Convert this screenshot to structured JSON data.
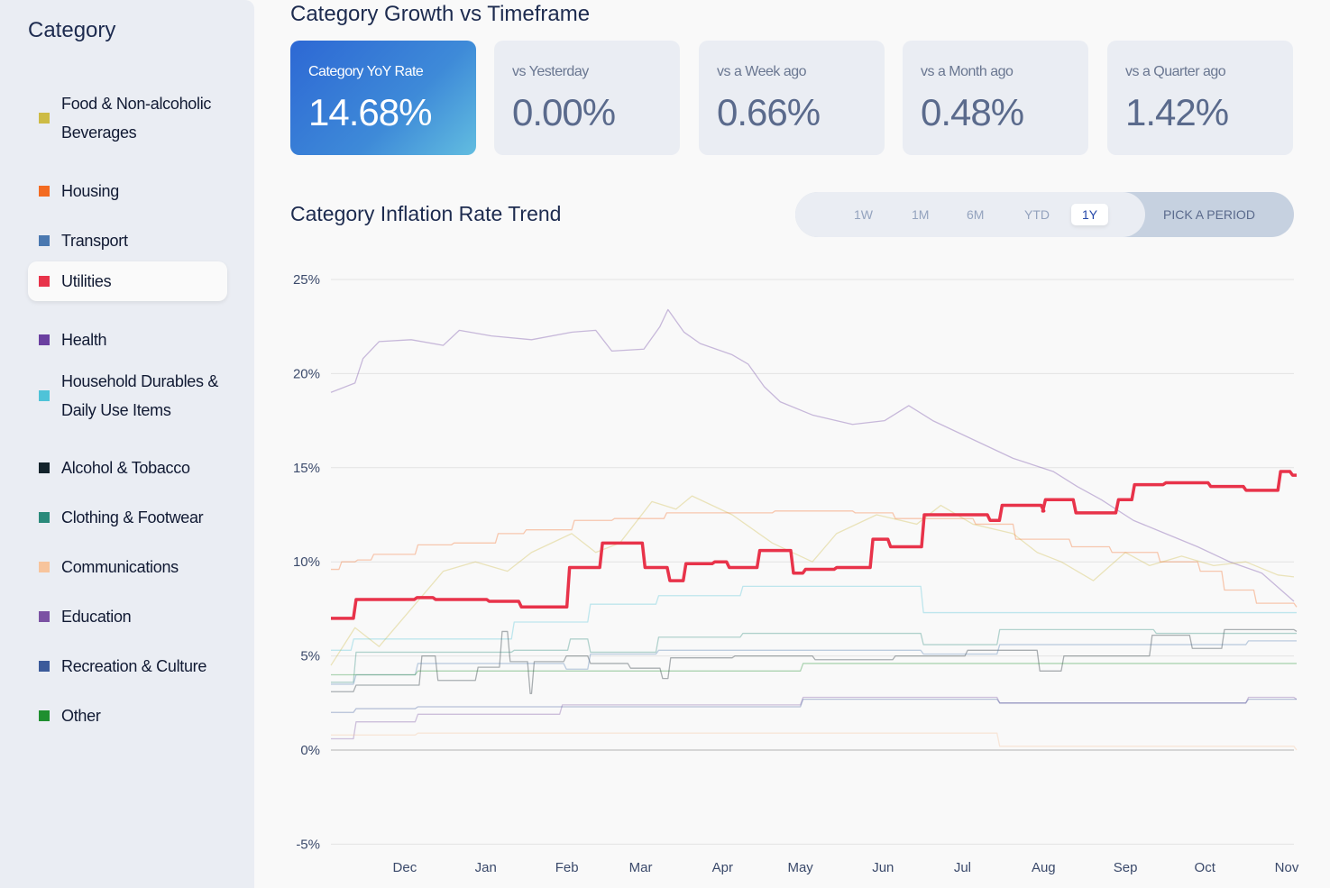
{
  "sidebar": {
    "title": "Category",
    "items": [
      {
        "label": "Food & Non-alcoholic Beverages",
        "color": "#cdbb45"
      },
      {
        "label": "Housing",
        "color": "#f36b21"
      },
      {
        "label": "Transport",
        "color": "#4a78b0"
      },
      {
        "label": "Utilities",
        "color": "#e8334a",
        "selected": true
      },
      {
        "label": "Health",
        "color": "#6a3fa0"
      },
      {
        "label": "Household Durables & Daily Use Items",
        "color": "#4fc3d8"
      },
      {
        "label": "Alcohol & Tobacco",
        "color": "#13232b"
      },
      {
        "label": "Clothing & Footwear",
        "color": "#2a8a7b"
      },
      {
        "label": "Communications",
        "color": "#f7c49c"
      },
      {
        "label": "Education",
        "color": "#7b52a3"
      },
      {
        "label": "Recreation & Culture",
        "color": "#3b5a9a"
      },
      {
        "label": "Other",
        "color": "#1f8f2f"
      }
    ]
  },
  "header": {
    "title": "Category Growth vs Timeframe"
  },
  "cards": [
    {
      "label": "Category YoY Rate",
      "value": "14.68%"
    },
    {
      "label": "vs Yesterday",
      "value": "0.00%"
    },
    {
      "label": "vs a Week ago",
      "value": "0.66%"
    },
    {
      "label": "vs a Month ago",
      "value": "0.48%"
    },
    {
      "label": "vs a Quarter ago",
      "value": "1.42%"
    }
  ],
  "trend": {
    "title": "Category Inflation Rate Trend",
    "periods": [
      "1W",
      "1M",
      "6M",
      "YTD",
      "1Y"
    ],
    "active_period": "1Y",
    "pick_label": "PICK A PERIOD"
  },
  "chart_data": {
    "type": "line",
    "title": "Category Inflation Rate Trend",
    "xlabel": "",
    "ylabel": "",
    "ylim": [
      -5,
      25
    ],
    "yticks": [
      "25%",
      "20%",
      "15%",
      "10%",
      "5%",
      "0%",
      "-5%"
    ],
    "ytick_values": [
      25,
      20,
      15,
      10,
      5,
      0,
      -5
    ],
    "xlim": [
      0,
      12
    ],
    "xticks": [
      "Dec",
      "Jan",
      "Feb",
      "Mar",
      "Apr",
      "May",
      "Jun",
      "Jul",
      "Aug",
      "Sep",
      "Oct",
      "Nov"
    ],
    "xtick_values": [
      0.92,
      1.93,
      2.94,
      3.86,
      4.88,
      5.85,
      6.88,
      7.87,
      8.88,
      9.9,
      10.89,
      11.91
    ],
    "grid": true,
    "highlighted": "Utilities",
    "series": [
      {
        "name": "Health",
        "step": false,
        "points": [
          [
            0,
            19
          ],
          [
            0.3,
            19.5
          ],
          [
            0.4,
            20.8
          ],
          [
            0.6,
            21.7
          ],
          [
            1,
            21.8
          ],
          [
            1.4,
            21.5
          ],
          [
            1.6,
            22.3
          ],
          [
            2,
            22
          ],
          [
            2.5,
            21.8
          ],
          [
            3,
            22.2
          ],
          [
            3.3,
            22.3
          ],
          [
            3.5,
            21.2
          ],
          [
            3.9,
            21.3
          ],
          [
            4.1,
            22.5
          ],
          [
            4.2,
            23.4
          ],
          [
            4.4,
            22.2
          ],
          [
            4.6,
            21.6
          ],
          [
            5,
            21
          ],
          [
            5.2,
            20.5
          ],
          [
            5.4,
            19.3
          ],
          [
            5.6,
            18.5
          ],
          [
            6,
            17.8
          ],
          [
            6.3,
            17.5
          ],
          [
            6.5,
            17.3
          ],
          [
            6.9,
            17.5
          ],
          [
            7.2,
            18.3
          ],
          [
            7.5,
            17.5
          ],
          [
            8,
            16.5
          ],
          [
            8.5,
            15.5
          ],
          [
            9,
            14.8
          ],
          [
            9.3,
            14
          ],
          [
            9.6,
            13.3
          ],
          [
            10,
            12.2
          ],
          [
            10.4,
            11.5
          ],
          [
            10.8,
            10.8
          ],
          [
            11.2,
            10
          ],
          [
            11.6,
            9.4
          ],
          [
            12,
            7.9
          ]
        ]
      },
      {
        "name": "Food & Non-alcoholic Beverages",
        "step": false,
        "points": [
          [
            0,
            4.5
          ],
          [
            0.3,
            6.5
          ],
          [
            0.6,
            5.5
          ],
          [
            1,
            7.5
          ],
          [
            1.4,
            9.5
          ],
          [
            1.8,
            10
          ],
          [
            2.2,
            9.5
          ],
          [
            2.5,
            10.5
          ],
          [
            3,
            11.5
          ],
          [
            3.3,
            10.5
          ],
          [
            3.6,
            11
          ],
          [
            4,
            13.2
          ],
          [
            4.3,
            12.8
          ],
          [
            4.5,
            13.5
          ],
          [
            5,
            12.5
          ],
          [
            5.5,
            11
          ],
          [
            6,
            10
          ],
          [
            6.3,
            11.5
          ],
          [
            6.8,
            12.5
          ],
          [
            7.3,
            12
          ],
          [
            7.6,
            13
          ],
          [
            8,
            12
          ],
          [
            8.5,
            11.5
          ],
          [
            8.8,
            10.5
          ],
          [
            9.1,
            10
          ],
          [
            9.5,
            9
          ],
          [
            9.9,
            10.5
          ],
          [
            10.2,
            9.8
          ],
          [
            10.6,
            10.3
          ],
          [
            11,
            9.8
          ],
          [
            11.4,
            10
          ],
          [
            11.8,
            9.3
          ],
          [
            12,
            9.2
          ]
        ]
      },
      {
        "name": "Housing",
        "step": true,
        "points": [
          [
            0,
            9.6
          ],
          [
            0.1,
            10
          ],
          [
            0.3,
            10.1
          ],
          [
            0.5,
            10.4
          ],
          [
            1.05,
            10.9
          ],
          [
            1.5,
            11
          ],
          [
            2.05,
            11.5
          ],
          [
            2.4,
            11.7
          ],
          [
            3,
            12.2
          ],
          [
            3.5,
            12.3
          ],
          [
            4.15,
            12.6
          ],
          [
            5.5,
            12.7
          ],
          [
            6.5,
            12.6
          ],
          [
            7,
            12.3
          ],
          [
            8,
            12
          ],
          [
            8.5,
            11.2
          ],
          [
            9.2,
            10.8
          ],
          [
            9.7,
            10.5
          ],
          [
            10.3,
            10
          ],
          [
            10.8,
            9.5
          ],
          [
            11.1,
            8.5
          ],
          [
            11.5,
            7.8
          ],
          [
            12,
            7.6
          ]
        ]
      },
      {
        "name": "Household Durables & Daily Use Items",
        "step": true,
        "points": [
          [
            0,
            5.3
          ],
          [
            0.25,
            5.9
          ],
          [
            2.25,
            6.8
          ],
          [
            3.2,
            7.75
          ],
          [
            4.05,
            8.2
          ],
          [
            5.1,
            8.7
          ],
          [
            7.35,
            7.3
          ],
          [
            12,
            7.3
          ]
        ]
      },
      {
        "name": "Alcohol & Tobacco",
        "step": true,
        "points": [
          [
            0,
            3.1
          ],
          [
            0.28,
            3.45
          ],
          [
            1.1,
            5
          ],
          [
            1.3,
            3.7
          ],
          [
            1.8,
            4.4
          ],
          [
            2.1,
            6.3
          ],
          [
            2.2,
            4.7
          ],
          [
            2.45,
            3
          ],
          [
            2.5,
            4.7
          ],
          [
            2.9,
            5
          ],
          [
            3.2,
            4.6
          ],
          [
            3.7,
            4.35
          ],
          [
            4.1,
            3.8
          ],
          [
            4.2,
            4.9
          ],
          [
            5,
            5
          ],
          [
            6,
            4.8
          ],
          [
            7,
            5
          ],
          [
            7.9,
            5.3
          ],
          [
            8.8,
            4.2
          ],
          [
            9.1,
            5
          ],
          [
            10.2,
            6.1
          ],
          [
            10.7,
            5.4
          ],
          [
            11.1,
            6.4
          ],
          [
            12,
            6.3
          ]
        ]
      },
      {
        "name": "Clothing & Footwear",
        "step": true,
        "points": [
          [
            0,
            3.6
          ],
          [
            0.28,
            5.2
          ],
          [
            2.25,
            5.3
          ],
          [
            2.95,
            5.9
          ],
          [
            3.2,
            5.2
          ],
          [
            4.05,
            6.0
          ],
          [
            5.1,
            6.2
          ],
          [
            7.35,
            5.6
          ],
          [
            8.3,
            6.4
          ],
          [
            10.25,
            6.2
          ],
          [
            12,
            6.2
          ]
        ]
      },
      {
        "name": "Transport",
        "step": true,
        "points": [
          [
            0,
            3.5
          ],
          [
            0.28,
            4.0
          ],
          [
            1.05,
            4.6
          ],
          [
            2.9,
            4.3
          ],
          [
            3.2,
            5.1
          ],
          [
            4.05,
            5.3
          ],
          [
            5.85,
            5.3
          ],
          [
            7.35,
            5.1
          ],
          [
            8.3,
            5.6
          ],
          [
            11.4,
            5.8
          ],
          [
            12,
            5.8
          ]
        ]
      },
      {
        "name": "Other",
        "step": true,
        "points": [
          [
            0,
            4.0
          ],
          [
            1.05,
            4.2
          ],
          [
            5.85,
            4.6
          ],
          [
            12,
            4.6
          ]
        ]
      },
      {
        "name": "Education",
        "step": true,
        "points": [
          [
            0,
            0.6
          ],
          [
            0.28,
            1.5
          ],
          [
            1.05,
            1.9
          ],
          [
            2.85,
            2.4
          ],
          [
            5.85,
            2.8
          ],
          [
            8.3,
            2.5
          ],
          [
            11.4,
            2.8
          ],
          [
            12,
            2.7
          ]
        ]
      },
      {
        "name": "Recreation & Culture",
        "step": true,
        "points": [
          [
            0,
            2.0
          ],
          [
            0.28,
            2.2
          ],
          [
            1.05,
            2.3
          ],
          [
            2.85,
            2.3
          ],
          [
            5.85,
            2.7
          ],
          [
            8.3,
            2.5
          ],
          [
            11.4,
            2.7
          ],
          [
            12,
            2.7
          ]
        ]
      },
      {
        "name": "Communications",
        "step": true,
        "points": [
          [
            0,
            0.8
          ],
          [
            1.05,
            0.9
          ],
          [
            8.3,
            0.2
          ],
          [
            12,
            0.0
          ]
        ]
      },
      {
        "name": "Utilities",
        "step": true,
        "points": [
          [
            0,
            7.0
          ],
          [
            0.28,
            8.0
          ],
          [
            1.04,
            8.1
          ],
          [
            1.27,
            8.0
          ],
          [
            1.94,
            7.9
          ],
          [
            2.34,
            7.6
          ],
          [
            2.94,
            9.7
          ],
          [
            3.35,
            11.0
          ],
          [
            3.88,
            9.7
          ],
          [
            4.19,
            9.0
          ],
          [
            4.39,
            9.9
          ],
          [
            4.75,
            10.0
          ],
          [
            4.93,
            9.7
          ],
          [
            5.31,
            10.6
          ],
          [
            5.73,
            9.4
          ],
          [
            5.88,
            9.6
          ],
          [
            6.27,
            9.7
          ],
          [
            6.72,
            11.2
          ],
          [
            6.94,
            10.8
          ],
          [
            7.36,
            12.5
          ],
          [
            8.18,
            12.2
          ],
          [
            8.33,
            13.0
          ],
          [
            8.85,
            12.7
          ],
          [
            8.87,
            13.3
          ],
          [
            9.25,
            12.6
          ],
          [
            9.78,
            13.3
          ],
          [
            9.98,
            14.1
          ],
          [
            10.37,
            14.2
          ],
          [
            10.93,
            14.0
          ],
          [
            11.37,
            13.8
          ],
          [
            11.8,
            14.8
          ],
          [
            11.95,
            14.6
          ],
          [
            12,
            14.6
          ]
        ]
      }
    ]
  }
}
